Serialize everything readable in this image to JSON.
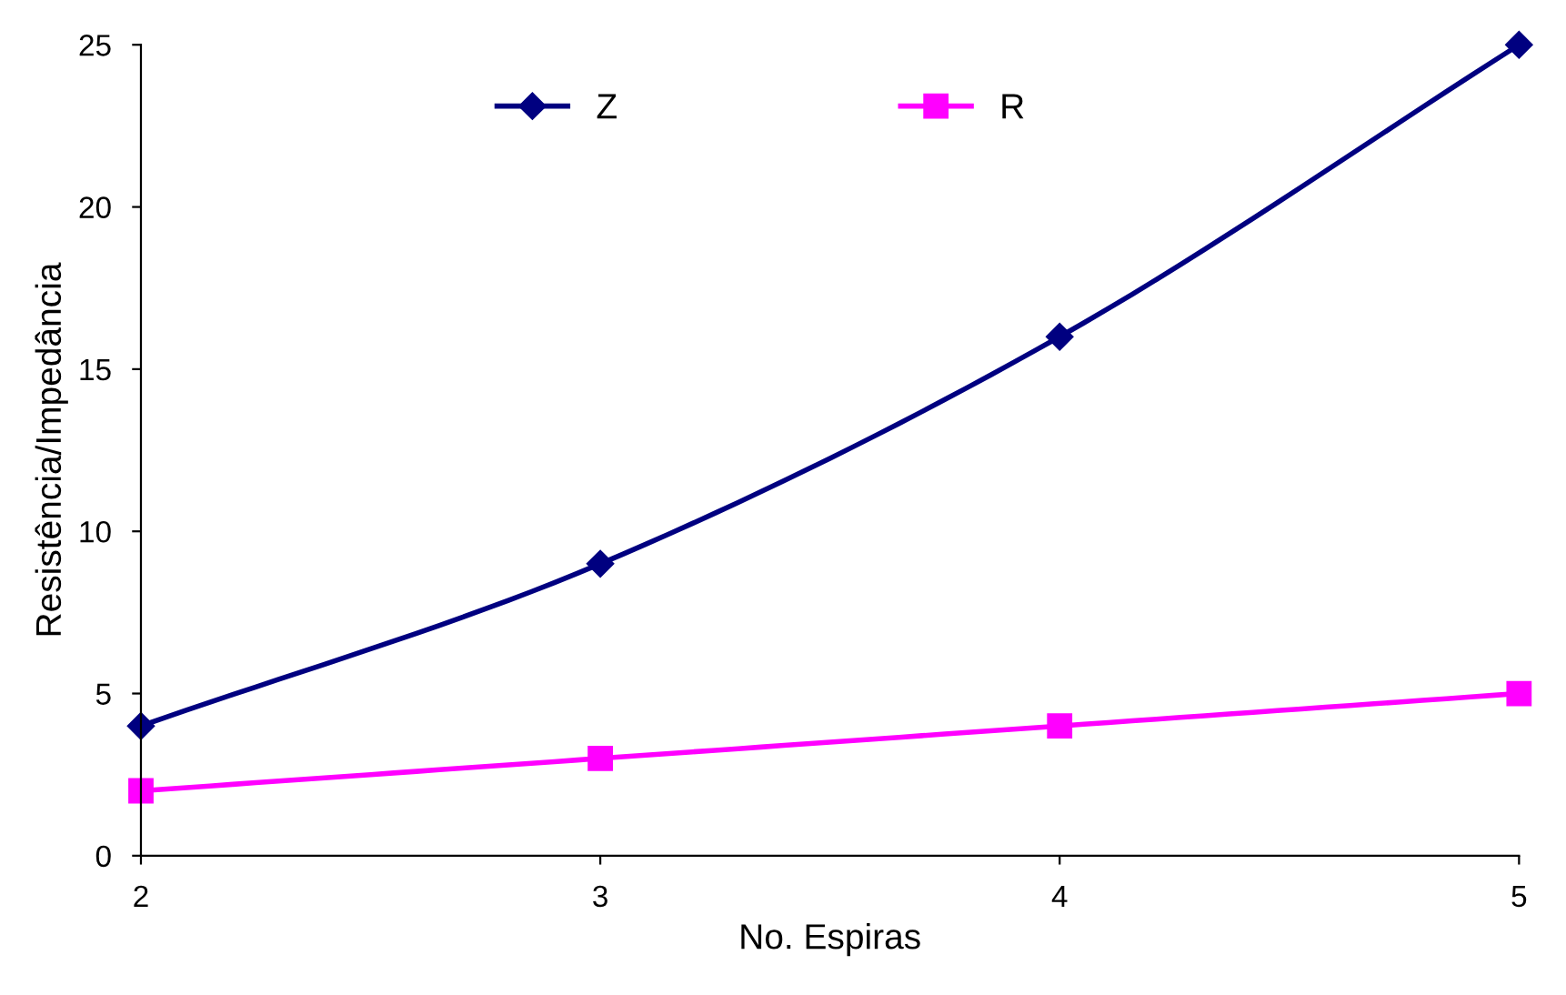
{
  "chart_data": {
    "type": "line",
    "xlabel": "No. Espiras",
    "ylabel": "Resistência/Impedância",
    "x": [
      2,
      3,
      4,
      5
    ],
    "series": [
      {
        "name": "Z",
        "color": "#000080",
        "values": [
          4,
          9,
          16,
          25
        ],
        "marker": "diamond"
      },
      {
        "name": "R",
        "color": "#ff00ff",
        "values": [
          2,
          3,
          4,
          5
        ],
        "marker": "square"
      }
    ],
    "xlim": [
      2,
      5
    ],
    "ylim": [
      0,
      25
    ],
    "xticks": [
      2,
      3,
      4,
      5
    ],
    "yticks": [
      0,
      5,
      10,
      15,
      20,
      25
    ],
    "grid": false,
    "legend": "top",
    "line_style": "solid"
  }
}
